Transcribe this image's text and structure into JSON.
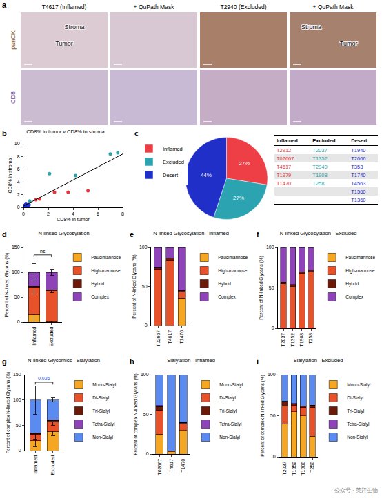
{
  "panel_a": {
    "letter": "a",
    "columns": [
      "T4617 (Inflamed)",
      "+ QuPath Mask",
      "T2940 (Excluded)",
      "+ QuPath Mask"
    ],
    "rows": [
      {
        "label": "panCK",
        "color": "#8B5A2B"
      },
      {
        "label": "CD8",
        "color": "#6B3FA0"
      }
    ],
    "region_labels": [
      {
        "column": 0,
        "row": 0,
        "texts": [
          "Stroma",
          "Tumor"
        ]
      },
      {
        "column": 3,
        "row": 0,
        "texts": [
          "Stroma",
          "Tumor"
        ]
      }
    ]
  },
  "chart_data": [
    {
      "letter": "b",
      "type": "scatter",
      "title": "CD8% in tumor v CD8% in stroma",
      "x_label": "CD8% in tumor",
      "y_label": "CD8% in stroma",
      "xlim": [
        0,
        8
      ],
      "xticks": [
        0,
        2,
        4,
        6,
        8
      ],
      "ylim": [
        0,
        10
      ],
      "yticks": [
        0,
        2,
        4,
        6,
        8,
        10
      ],
      "series": [
        {
          "color": "#E8343A",
          "marker": "circle",
          "x": [
            1.0,
            1.3,
            2.5,
            3.6,
            5.2
          ],
          "values": [
            1.2,
            1.3,
            2.4,
            2.4,
            2.6
          ]
        },
        {
          "color": "#2BA3A8",
          "marker": "circle",
          "x": [
            0.5,
            2.1,
            4.2,
            7.0,
            7.6
          ],
          "values": [
            1.0,
            5.3,
            5.0,
            8.4,
            8.6
          ]
        },
        {
          "color": "#1F2FC8",
          "marker": "circle",
          "x": [
            0.05,
            0.1,
            0.2,
            0.3,
            0.35,
            0.45,
            0.2
          ],
          "values": [
            0.1,
            0.3,
            0.2,
            0.5,
            0.2,
            0.4,
            0.6
          ]
        },
        {
          "type": "line",
          "color": "#000000",
          "line_style": "solid",
          "x": [
            0,
            8
          ],
          "values": [
            0.2,
            8.4
          ]
        }
      ]
    },
    {
      "letter": "c",
      "type": "pie",
      "categories": [
        "Inflamed",
        "Excluded",
        "Desert"
      ],
      "values": [
        27,
        27,
        44
      ],
      "value_labels": [
        "27%",
        "27%",
        "44%"
      ],
      "colors": [
        "#EE3F46",
        "#2BA3B0",
        "#1F2FC8"
      ],
      "legend": "top-left"
    },
    {
      "letter": "d",
      "type": "bar",
      "stacked": true,
      "title": "N-linked Glycosylation",
      "y_label": "Percent of N-linked Glycans (%)",
      "categories": [
        "Inflamed",
        "Excluded"
      ],
      "ylim": [
        0,
        150
      ],
      "yticks": [
        0,
        50,
        100,
        150
      ],
      "legend": "right",
      "series": [
        {
          "name": "Paucimannose",
          "color": "#F5A623",
          "values": [
            15,
            1
          ],
          "errors": [
            20,
            1
          ]
        },
        {
          "name": "High-mannose",
          "color": "#E8522A",
          "values": [
            55,
            62
          ],
          "errors": [
            14,
            4
          ]
        },
        {
          "name": "Hybrid",
          "color": "#6B1A0A",
          "values": [
            2,
            2
          ]
        },
        {
          "name": "Complex",
          "color": "#8E44B8",
          "values": [
            28,
            35
          ],
          "errors": [
            18,
            6
          ]
        }
      ],
      "comparison": {
        "label": "ns",
        "color": "#000000"
      }
    },
    {
      "letter": "e",
      "type": "bar",
      "stacked": true,
      "title": "N-linked Glycosylation - Inflamed",
      "y_label": "Percent of N-linked Glycans (%)",
      "categories": [
        "T02667",
        "T4617",
        "T1470"
      ],
      "ylim": [
        0,
        100
      ],
      "yticks": [
        0,
        50,
        100
      ],
      "legend": "right",
      "series": [
        {
          "name": "Paucimannose",
          "color": "#F5A623",
          "values": [
            0,
            0,
            35
          ]
        },
        {
          "name": "High-mannose",
          "color": "#E8522A",
          "values": [
            72,
            84,
            8
          ]
        },
        {
          "name": "Hybrid",
          "color": "#6B1A0A",
          "values": [
            2,
            2,
            2
          ]
        },
        {
          "name": "Complex",
          "color": "#8E44B8",
          "values": [
            26,
            14,
            55
          ]
        }
      ]
    },
    {
      "letter": "f",
      "type": "bar",
      "stacked": true,
      "title": "N-linked Glycosylation - Excluded",
      "y_label": "Percent of N-linked Glycans (%)",
      "categories": [
        "T2037",
        "T1352",
        "T1908",
        "T258"
      ],
      "ylim": [
        0,
        100
      ],
      "yticks": [
        0,
        50,
        100
      ],
      "legend": "right",
      "series": [
        {
          "name": "Paucimannose",
          "color": "#F5A623",
          "values": [
            0,
            0,
            0,
            0
          ]
        },
        {
          "name": "High-mannose",
          "color": "#E8522A",
          "values": [
            55,
            52,
            68,
            70
          ]
        },
        {
          "name": "Hybrid",
          "color": "#6B1A0A",
          "values": [
            2,
            2,
            2,
            2
          ]
        },
        {
          "name": "Complex",
          "color": "#8E44B8",
          "values": [
            43,
            46,
            30,
            28
          ]
        }
      ]
    },
    {
      "letter": "g",
      "type": "bar",
      "stacked": true,
      "title": "N-linked Glycomics - Sialylation",
      "y_label": "Percent of complex N-linked Glycans (%)",
      "categories": [
        "Inflamed",
        "Excluded"
      ],
      "ylim": [
        0,
        150
      ],
      "yticks": [
        0,
        50,
        100,
        150
      ],
      "legend": "right",
      "series": [
        {
          "name": "Mono-Sialyl",
          "color": "#F5A623",
          "values": [
            20,
            38
          ],
          "errors": [
            12,
            8
          ]
        },
        {
          "name": "Di-Sialyl",
          "color": "#E8522A",
          "values": [
            12,
            18
          ],
          "errors": [
            10,
            6
          ]
        },
        {
          "name": "Tri-Sialyl",
          "color": "#6B1A0A",
          "values": [
            2,
            4
          ]
        },
        {
          "name": "Tetra-Sialyl",
          "color": "#8E44B8",
          "values": [
            1,
            1
          ]
        },
        {
          "name": "Non-Sialyl",
          "color": "#5B8BF0",
          "values": [
            65,
            39
          ],
          "errors": [
            28,
            4
          ]
        }
      ],
      "comparison": {
        "label": "0.026",
        "color": "#2E5BE0"
      }
    },
    {
      "letter": "h",
      "type": "bar",
      "stacked": true,
      "title": "Sialylation - Inflamed",
      "y_label": "Percent of complex N-linked Glycans (%)",
      "categories": [
        "T02667",
        "T4617",
        "T1470"
      ],
      "ylim": [
        0,
        100
      ],
      "yticks": [
        0,
        50,
        100
      ],
      "legend": "right",
      "series": [
        {
          "name": "Mono-Sialyl",
          "color": "#F5A623",
          "values": [
            25,
            3,
            30
          ]
        },
        {
          "name": "Di-Sialyl",
          "color": "#E8522A",
          "values": [
            30,
            1,
            8
          ]
        },
        {
          "name": "Tri-Sialyl",
          "color": "#6B1A0A",
          "values": [
            5,
            0,
            2
          ]
        },
        {
          "name": "Tetra-Sialyl",
          "color": "#8E44B8",
          "values": [
            1,
            0,
            0
          ]
        },
        {
          "name": "Non-Sialyl",
          "color": "#5B8BF0",
          "values": [
            39,
            96,
            60
          ]
        }
      ]
    },
    {
      "letter": "i",
      "type": "bar",
      "stacked": true,
      "title": "Sialylation - Excluded",
      "y_label": "Percent of complex N-linked Glycans (%)",
      "categories": [
        "T2037",
        "T1352",
        "T1908",
        "T258"
      ],
      "ylim": [
        0,
        100
      ],
      "yticks": [
        0,
        50,
        100
      ],
      "legend": "right",
      "series": [
        {
          "name": "Mono-Sialyl",
          "color": "#F5A623",
          "values": [
            40,
            55,
            50,
            25
          ]
        },
        {
          "name": "Di-Sialyl",
          "color": "#E8522A",
          "values": [
            22,
            8,
            10,
            35
          ]
        },
        {
          "name": "Tri-Sialyl",
          "color": "#6B1A0A",
          "values": [
            5,
            2,
            2,
            3
          ]
        },
        {
          "name": "Tetra-Sialyl",
          "color": "#8E44B8",
          "values": [
            1,
            0,
            0,
            0
          ]
        },
        {
          "name": "Non-Sialyl",
          "color": "#5B8BF0",
          "values": [
            32,
            35,
            38,
            37
          ]
        }
      ]
    }
  ],
  "table": {
    "header": [
      "Inflamed",
      "Excluded",
      "Desert"
    ],
    "colors": [
      "#E8343A",
      "#2BA3A8",
      "#1F2FC8"
    ],
    "rows": [
      [
        "T2912",
        "T2037",
        "T1940"
      ],
      [
        "T02667",
        "T1352",
        "T2066"
      ],
      [
        "T4617",
        "T2940",
        "T353"
      ],
      [
        "T1979",
        "T1908",
        "T1740"
      ],
      [
        "T1470",
        "T258",
        "T4563"
      ],
      [
        null,
        null,
        "T1560"
      ],
      [
        null,
        null,
        "T1360"
      ]
    ]
  },
  "watermark": "公众号 · 英拜生物"
}
